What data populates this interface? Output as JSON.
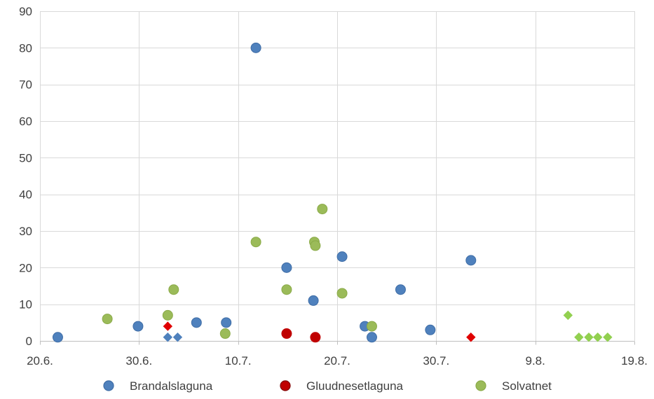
{
  "chart_data": {
    "type": "scatter",
    "title": "",
    "xlabel": "",
    "ylabel": "",
    "xlim": [
      0,
      60
    ],
    "ylim": [
      0,
      90
    ],
    "x_ticks": [
      {
        "value": 0,
        "label": "20.6."
      },
      {
        "value": 10,
        "label": "30.6."
      },
      {
        "value": 20,
        "label": "10.7."
      },
      {
        "value": 30,
        "label": "20.7."
      },
      {
        "value": 40,
        "label": "30.7."
      },
      {
        "value": 50,
        "label": "9.8."
      },
      {
        "value": 60,
        "label": "19.8."
      }
    ],
    "y_ticks": [
      0,
      10,
      20,
      30,
      40,
      50,
      60,
      70,
      80,
      90
    ],
    "grid": true,
    "legend_position": "bottom",
    "series": [
      {
        "name": "Brandalslaguna",
        "color": "#4f81bd",
        "edge": "#3f6da6",
        "marker": "circle",
        "points": [
          [
            1.8,
            1
          ],
          [
            9.9,
            4
          ],
          [
            15.8,
            5
          ],
          [
            18.8,
            5
          ],
          [
            21.8,
            80
          ],
          [
            24.9,
            20
          ],
          [
            27.6,
            11
          ],
          [
            30.5,
            23
          ],
          [
            32.8,
            4
          ],
          [
            33.5,
            1
          ],
          [
            36.4,
            14
          ],
          [
            39.4,
            3
          ],
          [
            43.5,
            22
          ]
        ]
      },
      {
        "name": "Brandalslaguna",
        "color": "#4f81bd",
        "edge": "#4f81bd",
        "marker": "diamond",
        "points": [
          [
            12.9,
            1
          ],
          [
            13.9,
            1
          ]
        ]
      },
      {
        "name": "Gluudnesetlaguna",
        "color": "#c00000",
        "edge": "#c00000",
        "marker": "circle",
        "points": [
          [
            24.9,
            2
          ],
          [
            27.8,
            1
          ]
        ]
      },
      {
        "name": "Gluudnesetlaguna",
        "color": "#e00000",
        "edge": "#e00000",
        "marker": "diamond",
        "points": [
          [
            12.9,
            4
          ],
          [
            43.5,
            1
          ]
        ]
      },
      {
        "name": "Solvatnet",
        "color": "#9bbb59",
        "edge": "#8aaa48",
        "marker": "circle",
        "points": [
          [
            6.8,
            6
          ],
          [
            12.9,
            7
          ],
          [
            13.5,
            14
          ],
          [
            18.7,
            2
          ],
          [
            21.8,
            27
          ],
          [
            24.9,
            14
          ],
          [
            27.7,
            27
          ],
          [
            27.8,
            26
          ],
          [
            28.5,
            36
          ],
          [
            30.5,
            13
          ],
          [
            33.5,
            4
          ]
        ]
      },
      {
        "name": "Solvatnet",
        "color": "#92d050",
        "edge": "#92d050",
        "marker": "diamond",
        "points": [
          [
            53.3,
            7
          ],
          [
            54.4,
            1
          ],
          [
            55.4,
            1
          ],
          [
            56.3,
            1
          ],
          [
            57.3,
            1
          ]
        ]
      }
    ],
    "legend": [
      {
        "name": "Brandalslaguna",
        "color": "#4f81bd",
        "edge": "#3f6da6"
      },
      {
        "name": "Gluudnesetlaguna",
        "color": "#c00000",
        "edge": "#800000"
      },
      {
        "name": "Solvatnet",
        "color": "#9bbb59",
        "edge": "#8aaa48"
      }
    ]
  }
}
